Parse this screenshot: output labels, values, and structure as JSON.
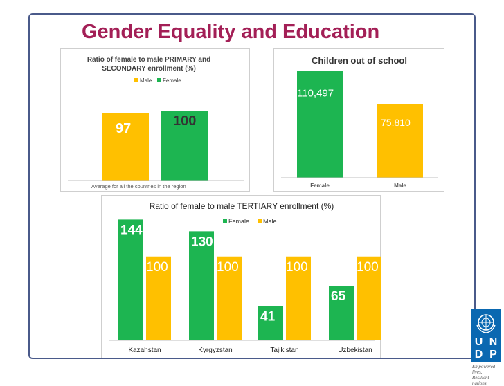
{
  "slide": {
    "title": "Gender Equality and Education"
  },
  "colors": {
    "female": "#1db551",
    "male": "#ffc000",
    "title": "#a31f56",
    "frame": "#4a5a8a",
    "logo": "#0a68b1"
  },
  "logo": {
    "letters": [
      "U",
      "N",
      "D",
      "P"
    ],
    "emblem": "un-emblem-icon",
    "tagline_line1": "Empowered lives.",
    "tagline_line2": "Resilient nations."
  },
  "chart_data": [
    {
      "type": "bar",
      "title": "Ratio of female to male PRIMARY and SECONDARY enrollment (%)",
      "title_lines": [
        "Ratio of female to male PRIMARY and",
        "SECONDARY enrollment (%)"
      ],
      "categories": [
        "Average for all the countries in the region"
      ],
      "series": [
        {
          "name": "Male",
          "values": [
            97
          ]
        },
        {
          "name": "Female",
          "values": [
            100
          ]
        }
      ],
      "legend": "top-center",
      "ylim": [
        0,
        180
      ],
      "grid": false
    },
    {
      "type": "bar",
      "title": "Children out of school",
      "categories": [
        "Female",
        "Male"
      ],
      "values": [
        110497,
        75810
      ],
      "data_labels": [
        "110,497",
        "75.810"
      ],
      "ylim": [
        0,
        115000
      ],
      "grid": false
    },
    {
      "type": "bar",
      "title": "Ratio of female to male TERTIARY enrollment (%)",
      "categories": [
        "Kazahstan",
        "Kyrgyzstan",
        "Tajikistan",
        "Uzbekistan"
      ],
      "series": [
        {
          "name": "Female",
          "values": [
            144,
            130,
            41,
            65
          ]
        },
        {
          "name": "Male",
          "values": [
            100,
            100,
            100,
            100
          ]
        }
      ],
      "legend": "top-center",
      "ylim": [
        0,
        160
      ],
      "grid": false
    }
  ]
}
